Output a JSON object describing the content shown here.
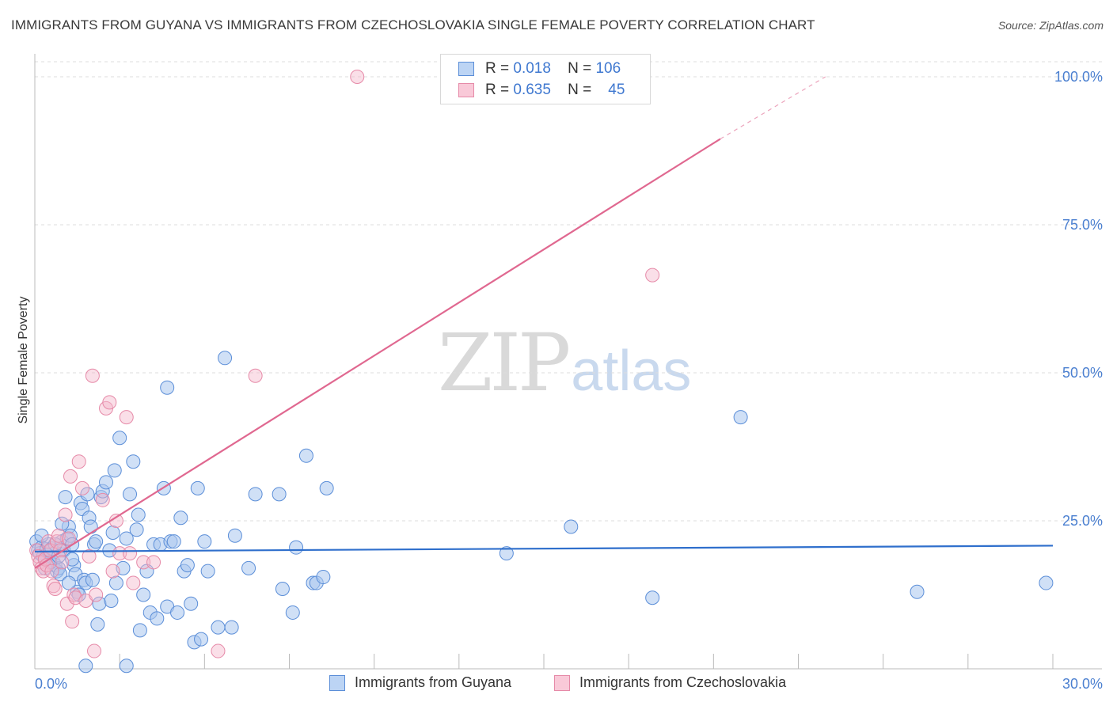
{
  "title": "IMMIGRANTS FROM GUYANA VS IMMIGRANTS FROM CZECHOSLOVAKIA SINGLE FEMALE POVERTY CORRELATION CHART",
  "source": "Source: ZipAtlas.com",
  "watermark": {
    "zip": "ZIP",
    "atlas": "atlas"
  },
  "legend": {
    "guyana": {
      "r_label": "R =",
      "r_value": "0.018",
      "n_label": "N =",
      "n_value": "106"
    },
    "czech": {
      "r_label": "R =",
      "r_value": "0.635",
      "n_label": "N =",
      "n_value": "45"
    }
  },
  "colors": {
    "guyana_fill": "#a9c6ee",
    "guyana_stroke": "#5b8ed8",
    "guyana_line": "#2f6fcc",
    "czech_fill": "#f5b8cc",
    "czech_stroke": "#e68aa8",
    "czech_line": "#e06890",
    "axis_text": "#4a7fd0",
    "grid": "#dddddd"
  },
  "chart_data": {
    "type": "scatter",
    "title": "IMMIGRANTS FROM GUYANA VS IMMIGRANTS FROM CZECHOSLOVAKIA SINGLE FEMALE POVERTY CORRELATION CHART",
    "xlabel": "",
    "ylabel": "Single Female Poverty",
    "xlim": [
      0,
      30
    ],
    "ylim": [
      0,
      100
    ],
    "x_tick_labels": [
      "0.0%",
      "30.0%"
    ],
    "y_tick_values": [
      25,
      50,
      75,
      100
    ],
    "y_tick_labels": [
      "25.0%",
      "50.0%",
      "75.0%",
      "100.0%"
    ],
    "series": [
      {
        "name": "Immigrants from Guyana",
        "color": "#5b8ed8",
        "trend": {
          "x": [
            0,
            30
          ],
          "y": [
            19.8,
            20.8
          ],
          "r": 0.018,
          "n": 106
        },
        "points": [
          [
            0.05,
            21.5
          ],
          [
            0.1,
            20.0
          ],
          [
            0.15,
            19.5
          ],
          [
            0.2,
            20.5
          ],
          [
            0.25,
            19.0
          ],
          [
            0.3,
            18.5
          ],
          [
            0.35,
            20.2
          ],
          [
            0.4,
            21.0
          ],
          [
            0.45,
            19.8
          ],
          [
            0.5,
            20.3
          ],
          [
            0.55,
            18.0
          ],
          [
            0.6,
            17.5
          ],
          [
            0.65,
            16.5
          ],
          [
            0.7,
            17.0
          ],
          [
            0.75,
            16.0
          ],
          [
            0.8,
            21.5
          ],
          [
            0.85,
            20.0
          ],
          [
            0.9,
            29.0
          ],
          [
            0.95,
            22.0
          ],
          [
            1.0,
            24.0
          ],
          [
            1.05,
            22.5
          ],
          [
            1.1,
            21.0
          ],
          [
            1.15,
            17.5
          ],
          [
            1.2,
            16.0
          ],
          [
            1.25,
            13.0
          ],
          [
            1.3,
            12.5
          ],
          [
            1.35,
            28.0
          ],
          [
            1.4,
            27.0
          ],
          [
            1.45,
            15.0
          ],
          [
            1.5,
            14.5
          ],
          [
            1.55,
            29.5
          ],
          [
            1.6,
            25.5
          ],
          [
            1.65,
            24.0
          ],
          [
            1.7,
            15.0
          ],
          [
            1.75,
            21.0
          ],
          [
            1.8,
            21.5
          ],
          [
            1.85,
            7.5
          ],
          [
            1.9,
            11.0
          ],
          [
            1.95,
            29.0
          ],
          [
            2.0,
            30.0
          ],
          [
            2.1,
            31.5
          ],
          [
            2.2,
            20.0
          ],
          [
            2.25,
            11.5
          ],
          [
            2.3,
            23.0
          ],
          [
            2.35,
            33.5
          ],
          [
            2.4,
            14.5
          ],
          [
            2.5,
            39.0
          ],
          [
            2.6,
            17.0
          ],
          [
            2.7,
            22.0
          ],
          [
            2.8,
            29.5
          ],
          [
            2.9,
            35.0
          ],
          [
            3.0,
            23.5
          ],
          [
            3.05,
            26.0
          ],
          [
            3.1,
            6.5
          ],
          [
            3.2,
            12.5
          ],
          [
            3.3,
            16.5
          ],
          [
            3.4,
            9.5
          ],
          [
            3.5,
            21.0
          ],
          [
            3.6,
            8.5
          ],
          [
            3.7,
            21.0
          ],
          [
            3.8,
            30.5
          ],
          [
            3.9,
            10.5
          ],
          [
            4.0,
            21.5
          ],
          [
            4.1,
            21.5
          ],
          [
            4.2,
            9.5
          ],
          [
            4.3,
            25.5
          ],
          [
            4.4,
            16.5
          ],
          [
            4.5,
            17.5
          ],
          [
            4.6,
            11.0
          ],
          [
            4.7,
            4.5
          ],
          [
            4.8,
            30.5
          ],
          [
            4.9,
            5.0
          ],
          [
            5.0,
            21.5
          ],
          [
            5.1,
            16.5
          ],
          [
            5.4,
            7.0
          ],
          [
            5.6,
            52.5
          ],
          [
            5.8,
            7.0
          ],
          [
            5.9,
            22.5
          ],
          [
            6.3,
            17.0
          ],
          [
            6.5,
            29.5
          ],
          [
            7.2,
            29.5
          ],
          [
            7.3,
            13.5
          ],
          [
            7.6,
            9.5
          ],
          [
            7.7,
            20.5
          ],
          [
            8.0,
            36.0
          ],
          [
            8.2,
            14.5
          ],
          [
            8.3,
            14.5
          ],
          [
            8.5,
            15.5
          ],
          [
            8.6,
            30.5
          ],
          [
            3.9,
            47.5
          ],
          [
            2.7,
            0.5
          ],
          [
            1.5,
            0.5
          ],
          [
            0.3,
            17.0
          ],
          [
            0.6,
            21.0
          ],
          [
            0.8,
            24.5
          ],
          [
            1.0,
            14.5
          ],
          [
            13.9,
            19.5
          ],
          [
            15.8,
            24.0
          ],
          [
            18.2,
            12.0
          ],
          [
            20.8,
            42.5
          ],
          [
            26.0,
            13.0
          ],
          [
            29.8,
            14.5
          ],
          [
            0.2,
            22.5
          ],
          [
            0.45,
            18.0
          ],
          [
            0.7,
            19.0
          ],
          [
            1.1,
            18.5
          ]
        ]
      },
      {
        "name": "Immigrants from Czechoslovakia",
        "color": "#e68aa8",
        "trend": {
          "x": [
            0,
            20.2
          ],
          "y": [
            17.0,
            89.5
          ],
          "r": 0.635,
          "n": 45,
          "dashed_to": [
            23.3,
            100
          ]
        },
        "points": [
          [
            0.05,
            20.0
          ],
          [
            0.1,
            19.0
          ],
          [
            0.15,
            18.0
          ],
          [
            0.2,
            17.0
          ],
          [
            0.25,
            16.5
          ],
          [
            0.3,
            18.5
          ],
          [
            0.35,
            17.5
          ],
          [
            0.4,
            21.5
          ],
          [
            0.45,
            20.0
          ],
          [
            0.5,
            16.5
          ],
          [
            0.55,
            14.0
          ],
          [
            0.6,
            13.5
          ],
          [
            0.65,
            21.5
          ],
          [
            0.7,
            22.5
          ],
          [
            0.75,
            20.0
          ],
          [
            0.8,
            18.0
          ],
          [
            0.9,
            26.0
          ],
          [
            0.95,
            11.0
          ],
          [
            1.0,
            22.0
          ],
          [
            1.05,
            32.5
          ],
          [
            1.1,
            8.0
          ],
          [
            1.15,
            12.5
          ],
          [
            1.2,
            12.0
          ],
          [
            1.3,
            35.0
          ],
          [
            1.4,
            30.5
          ],
          [
            1.5,
            11.5
          ],
          [
            1.6,
            19.0
          ],
          [
            1.7,
            49.5
          ],
          [
            1.75,
            3.0
          ],
          [
            1.8,
            12.5
          ],
          [
            2.0,
            28.5
          ],
          [
            2.1,
            44.0
          ],
          [
            2.2,
            45.0
          ],
          [
            2.3,
            16.5
          ],
          [
            2.4,
            25.0
          ],
          [
            2.5,
            19.5
          ],
          [
            2.7,
            42.5
          ],
          [
            2.8,
            19.5
          ],
          [
            2.9,
            14.5
          ],
          [
            3.2,
            18.0
          ],
          [
            3.5,
            18.0
          ],
          [
            5.4,
            3.0
          ],
          [
            6.5,
            49.5
          ],
          [
            9.5,
            100.0
          ],
          [
            18.2,
            66.5
          ]
        ]
      }
    ]
  },
  "bottom_legend": {
    "guyana_label": "Immigrants from Guyana",
    "czech_label": "Immigrants from Czechoslovakia"
  }
}
